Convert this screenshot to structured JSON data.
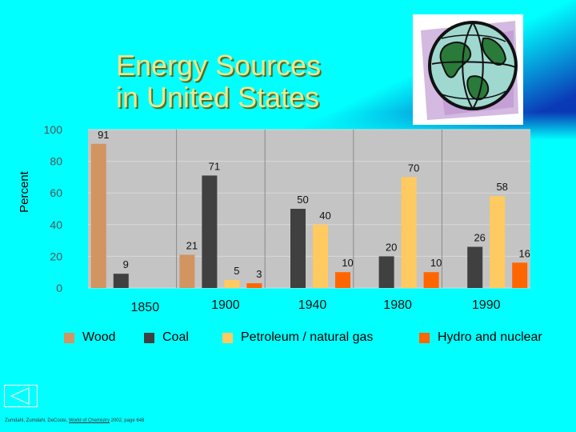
{
  "slide": {
    "title_lines": [
      "Energy Sources",
      "in United States"
    ],
    "ylabel": "Percent",
    "citation": {
      "prefix": "Zumdahl, Zumdahl, DeCoste,",
      "book": "World of Chemistry",
      "suffix": "2002, page 648"
    }
  },
  "chart_data": {
    "type": "bar",
    "title": "Energy Sources in United States",
    "xlabel": "",
    "ylabel": "Percent",
    "ylim": [
      0,
      100
    ],
    "yticks": [
      0,
      20,
      40,
      60,
      80,
      100
    ],
    "grid": true,
    "legend_position": "bottom",
    "categories": [
      "1850",
      "1900",
      "1940",
      "1980",
      "1990"
    ],
    "series": [
      {
        "name": "Wood",
        "color": "#d29460",
        "values": [
          91,
          21,
          null,
          null,
          null
        ]
      },
      {
        "name": "Coal",
        "color": "#404040",
        "values": [
          9,
          71,
          50,
          20,
          26
        ]
      },
      {
        "name": "Petroleum / natural gas",
        "color": "#ffca60",
        "values": [
          null,
          5,
          40,
          70,
          58
        ]
      },
      {
        "name": "Hydro and nuclear",
        "color": "#ff6600",
        "values": [
          null,
          3,
          10,
          10,
          16
        ]
      }
    ]
  }
}
